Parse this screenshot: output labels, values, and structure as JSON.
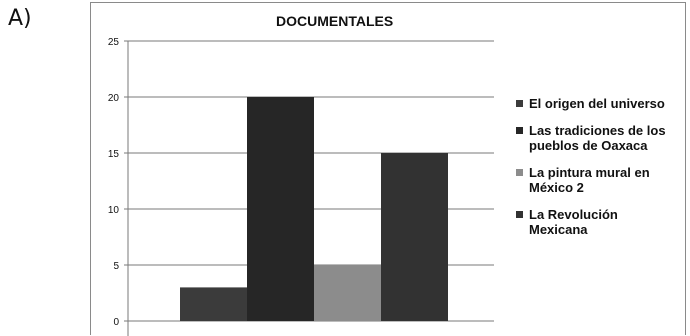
{
  "option_label": "A)",
  "chart_data": {
    "type": "bar",
    "title": "DOCUMENTALES",
    "categories": [
      "El origen del universo",
      "Las tradiciones de los pueblos de Oaxaca",
      "La pintura mural en México 2",
      "La Revolución Mexicana"
    ],
    "values": [
      3,
      20,
      5,
      15
    ],
    "colors": [
      "#3b3b3b",
      "#262626",
      "#8c8c8c",
      "#323232"
    ],
    "ylim": [
      0,
      25
    ],
    "yticks": [
      0,
      5,
      10,
      15,
      20,
      25
    ],
    "grid": true,
    "legend_position": "right",
    "legend": [
      {
        "line1": "El origen del universo",
        "line2": ""
      },
      {
        "line1": "Las tradiciones de los",
        "line2": "pueblos de Oaxaca"
      },
      {
        "line1": "La pintura mural en",
        "line2": "México 2"
      },
      {
        "line1": "La Revolución",
        "line2": "Mexicana"
      }
    ]
  }
}
